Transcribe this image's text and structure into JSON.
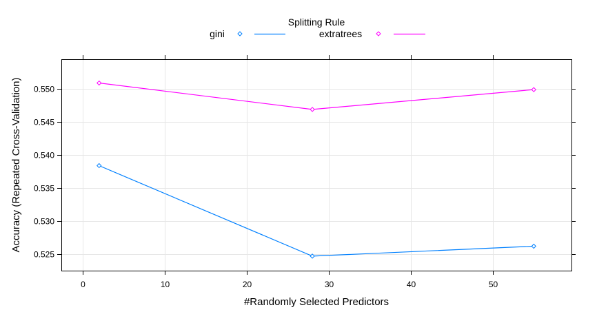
{
  "chart_data": {
    "type": "line",
    "title": "",
    "legend_title": "Splitting Rule",
    "legend_position": "top",
    "xlabel": "#Randomly Selected Predictors",
    "ylabel": "Accuracy (Repeated Cross-Validation)",
    "xlim": [
      -2.6,
      59.6
    ],
    "ylim": [
      0.5225,
      0.5545
    ],
    "x_ticks": [
      0,
      10,
      20,
      30,
      40,
      50
    ],
    "y_ticks": [
      0.525,
      0.53,
      0.535,
      0.54,
      0.545,
      0.55
    ],
    "x_tick_labels": [
      "0",
      "10",
      "20",
      "30",
      "40",
      "50"
    ],
    "y_tick_labels": [
      "0.525",
      "0.530",
      "0.535",
      "0.540",
      "0.545",
      "0.550"
    ],
    "grid": true,
    "series": [
      {
        "name": "gini",
        "color": "#0080ff",
        "x": [
          2,
          28,
          55
        ],
        "values": [
          0.5384,
          0.5247,
          0.5262
        ]
      },
      {
        "name": "extratrees",
        "color": "#ff00ff",
        "x": [
          2,
          28,
          55
        ],
        "values": [
          0.5509,
          0.5469,
          0.5499
        ]
      }
    ]
  }
}
